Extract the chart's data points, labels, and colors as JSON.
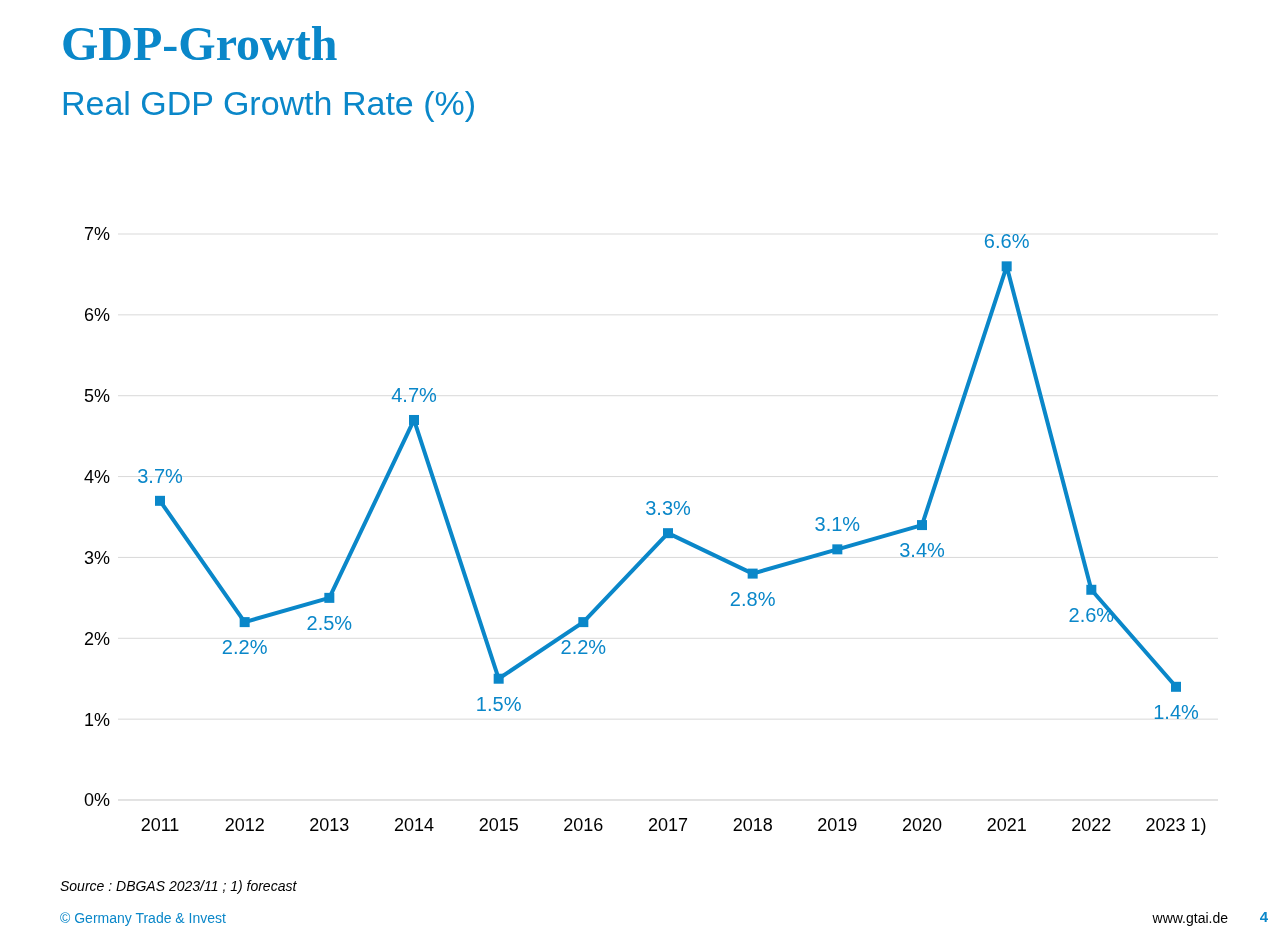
{
  "chart_data": {
    "type": "line",
    "title": "GDP-Growth",
    "subtitle": "Real GDP Growth Rate (%)",
    "categories": [
      "2011",
      "2012",
      "2013",
      "2014",
      "2015",
      "2016",
      "2017",
      "2018",
      "2019",
      "2020",
      "2021",
      "2022",
      "2023 1)"
    ],
    "series": [
      {
        "color": "#0a87c9",
        "values": [
          3.7,
          2.2,
          2.5,
          4.7,
          1.5,
          2.2,
          3.3,
          2.8,
          3.1,
          3.4,
          6.6,
          2.6,
          1.4
        ],
        "value_labels": [
          "3.7%",
          "2.2%",
          "2.5%",
          "4.7%",
          "1.5%",
          "2.2%",
          "3.3%",
          "2.8%",
          "3.1%",
          "3.4%",
          "6.6%",
          "2.6%",
          "1.4%"
        ]
      }
    ],
    "ylim": [
      0,
      7
    ],
    "yticks": [
      {
        "value": 0,
        "label": "0%"
      },
      {
        "value": 1,
        "label": "1%"
      },
      {
        "value": 2,
        "label": "2%"
      },
      {
        "value": 3,
        "label": "3%"
      },
      {
        "value": 4,
        "label": "4%"
      },
      {
        "value": 5,
        "label": "5%"
      },
      {
        "value": 6,
        "label": "6%"
      },
      {
        "value": 7,
        "label": "7%"
      }
    ],
    "grid": "y",
    "marker": "square",
    "line_style": "solid",
    "legend": false,
    "annotations": [
      "Source : DBGAS 2023/11 ; 1) forecast",
      "© Germany Trade & Invest",
      "www.gtai.de",
      "4"
    ]
  }
}
